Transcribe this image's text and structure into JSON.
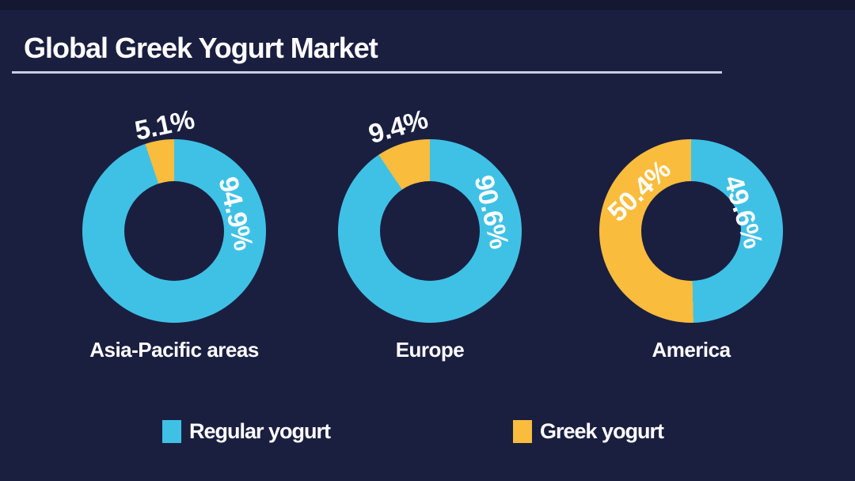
{
  "header": {
    "title": "Global Greek Yogurt Market"
  },
  "colors": {
    "background": "#1A1F40",
    "top_edge": "#141831",
    "title_text": "#FFFFFF",
    "title_underline": "#C8CCE6",
    "regular_yogurt": "#3FC1E6",
    "greek_yogurt": "#F9BC3C",
    "label_text": "#FFFFFF"
  },
  "chart_data": {
    "type": "pie",
    "subtype": "donut",
    "title": "Global Greek Yogurt Market",
    "legend_position": "bottom",
    "unit": "%",
    "categories": [
      "Asia-Pacific areas",
      "Europe",
      "America"
    ],
    "series": [
      {
        "name": "Regular yogurt",
        "color": "#3FC1E6",
        "values": [
          94.9,
          90.6,
          49.6
        ],
        "labels": [
          "94.9%",
          "90.6%",
          "49.6%"
        ]
      },
      {
        "name": "Greek yogurt",
        "color": "#F9BC3C",
        "values": [
          5.1,
          9.4,
          50.4
        ],
        "labels": [
          "5.1%",
          "9.4%",
          "50.4%"
        ]
      }
    ]
  }
}
